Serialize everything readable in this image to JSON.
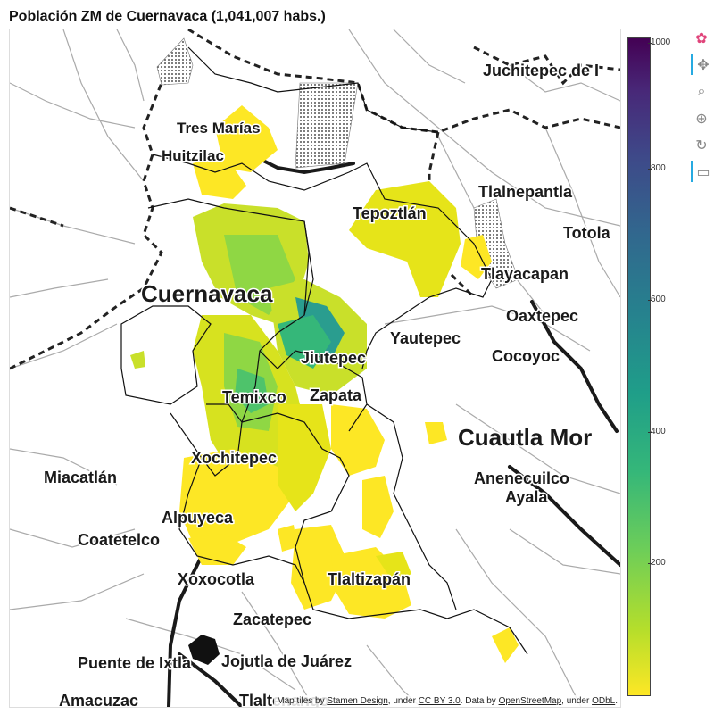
{
  "title": "Población ZM de Cuernavaca (1,041,007 habs.)",
  "map": {
    "places": [
      {
        "name": "Juchitepec de I",
        "size": 18
      },
      {
        "name": "Tres Marías",
        "size": 17
      },
      {
        "name": "Huitzilac",
        "size": 17
      },
      {
        "name": "Tlalnepantla",
        "size": 18
      },
      {
        "name": "Tepoztlán",
        "size": 18
      },
      {
        "name": "Totola",
        "size": 18
      },
      {
        "name": "Tlayacapan",
        "size": 18
      },
      {
        "name": "Cuernavaca",
        "size": 26
      },
      {
        "name": "Oaxtepec",
        "size": 18
      },
      {
        "name": "Yautepec",
        "size": 18
      },
      {
        "name": "Cocoyoc",
        "size": 18
      },
      {
        "name": "Jiutepec",
        "size": 18
      },
      {
        "name": "Zapata",
        "size": 18
      },
      {
        "name": "Temixco",
        "size": 18
      },
      {
        "name": "Cuautla Mor",
        "size": 26
      },
      {
        "name": "Xochitepec",
        "size": 18
      },
      {
        "name": "Miacatlán",
        "size": 18
      },
      {
        "name": "Anenecuilco",
        "size": 18
      },
      {
        "name": "Ayala",
        "size": 18
      },
      {
        "name": "Alpuyeca",
        "size": 18
      },
      {
        "name": "Coatetelco",
        "size": 18
      },
      {
        "name": "Xoxocotla",
        "size": 18
      },
      {
        "name": "Tlaltizapán",
        "size": 18
      },
      {
        "name": "Zacatepec",
        "size": 18
      },
      {
        "name": "Puente de Ixtla",
        "size": 18
      },
      {
        "name": "Jojutla de Juárez",
        "size": 18
      },
      {
        "name": "Amacuzac",
        "size": 18
      },
      {
        "name": "Tlaltenango",
        "size": 18
      }
    ],
    "attribution": {
      "prefix": "Map tiles by ",
      "stamen": "Stamen Design",
      "under1": ", under ",
      "ccby": "CC BY 3.0",
      "data": ". Data by ",
      "osm": "OpenStreetMap",
      "under2": ", under ",
      "odbl": "ODbL",
      "end": "."
    }
  },
  "colorbar": {
    "min": 0,
    "max": 1000,
    "ticks": [
      200,
      400,
      600,
      800,
      1000
    ],
    "palette": [
      "#fde725",
      "#b5de2b",
      "#6ece58",
      "#35b779",
      "#1f9e89",
      "#26828e",
      "#31688e",
      "#3e4989",
      "#482878",
      "#440154"
    ]
  },
  "toolbar": {
    "tools": [
      {
        "icon": "bokeh-logo-icon",
        "glyph": "✿"
      },
      {
        "icon": "pan-icon",
        "glyph": "✥"
      },
      {
        "icon": "box-zoom-icon",
        "glyph": "⌕"
      },
      {
        "icon": "wheel-zoom-icon",
        "glyph": "⊕"
      },
      {
        "icon": "reset-icon",
        "glyph": "↻"
      },
      {
        "icon": "hover-icon",
        "glyph": "▭"
      }
    ]
  }
}
